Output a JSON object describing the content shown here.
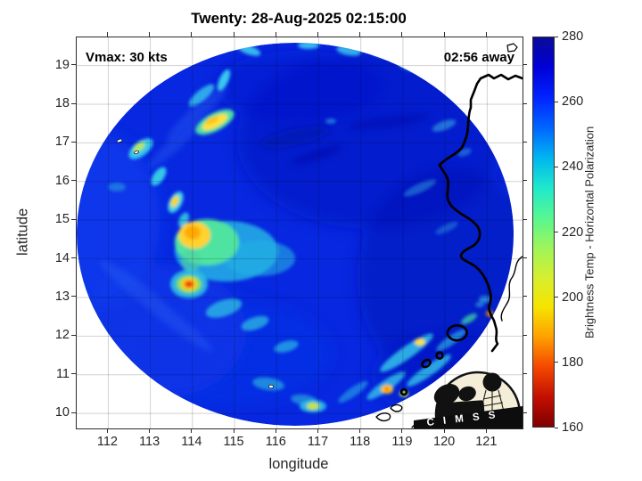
{
  "title": "Twenty: 28-Aug-2025 02:15:00",
  "annotations": {
    "vmax": "Vmax: 30 kts",
    "timing": "02:56 away"
  },
  "axes": {
    "xlabel": "longitude",
    "ylabel": "latitude"
  },
  "logo": {
    "text": "C I M S S"
  },
  "chart_data": {
    "type": "heatmap",
    "title": "Twenty: 28-Aug-2025 02:15:00",
    "xlabel": "longitude",
    "ylabel": "latitude",
    "x_range": [
      111.25,
      121.84
    ],
    "y_range": [
      9.61,
      19.73
    ],
    "x_ticks": [
      112,
      113,
      114,
      115,
      116,
      117,
      118,
      119,
      120,
      121
    ],
    "y_ticks": [
      10,
      11,
      12,
      13,
      14,
      15,
      16,
      17,
      18,
      19
    ],
    "grid": true,
    "colorbar": {
      "label": "Brightness Temp - Horizontal Polarization",
      "range": [
        160,
        280
      ],
      "ticks": [
        280,
        260,
        240,
        220,
        200,
        180,
        160
      ],
      "colormap": "jet-reversed",
      "stops": [
        "#0b0b97",
        "#0000d8",
        "#0023ff",
        "#0064ff",
        "#00b4f0",
        "#1ee8cd",
        "#55f792",
        "#9cf55b",
        "#d6ef30",
        "#f5e400",
        "#ffa000",
        "#f44800",
        "#c31000",
        "#800000"
      ]
    },
    "swath": {
      "description": "circular microwave satellite swath",
      "center_lon": 116.45,
      "center_lat": 14.62,
      "radius_deg": 5.2,
      "background_tb_K": 268,
      "dark_blue_tb_K": 276
    },
    "features": [
      {
        "lon": 114.53,
        "lat": 17.57,
        "tb_K": 205,
        "desc": "yellow convective cell, north band"
      },
      {
        "lon": 112.77,
        "lat": 16.85,
        "tb_K": 222,
        "desc": "green-cyan band segment, west arc"
      },
      {
        "lon": 113.2,
        "lat": 16.14,
        "tb_K": 235,
        "desc": "cyan band segment, west arc"
      },
      {
        "lon": 113.6,
        "lat": 15.47,
        "tb_K": 212,
        "desc": "yellow cell, west arc"
      },
      {
        "lon": 114.02,
        "lat": 14.61,
        "tb_K": 198,
        "desc": "large yellow convective area"
      },
      {
        "lon": 113.92,
        "lat": 13.34,
        "tb_K": 172,
        "desc": "intense red/orange convective core"
      },
      {
        "lon": 116.86,
        "lat": 10.18,
        "tb_K": 212,
        "desc": "yellow-green cell near south edge"
      },
      {
        "lon": 119.4,
        "lat": 11.85,
        "tb_K": 205,
        "desc": "yellow cell in SE rainband streaks"
      },
      {
        "lon": 118.62,
        "lat": 10.62,
        "tb_K": 195,
        "desc": "orange cell in SE rainband streaks"
      },
      {
        "lon": 121.06,
        "lat": 12.58,
        "tb_K": 200,
        "desc": "small orange cell near coastline"
      }
    ],
    "overlays": [
      "Luzon/Philippines coastline in white over swath, black outside swath",
      "CIMSS logo bottom right"
    ]
  }
}
